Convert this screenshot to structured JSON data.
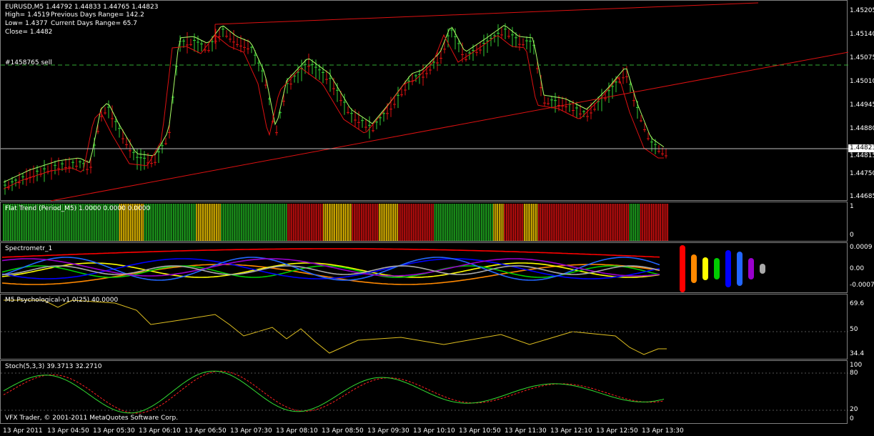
{
  "main": {
    "header_line": "EURUSD,M5  1.44792 1.44833 1.44765 1.44823",
    "high": "High= 1.4519",
    "prev_range": "Previous Days Range= 142.2",
    "low": "Low= 1.4377",
    "cur_range": "Current Days Range= 65.7",
    "close": "Close= 1.4482",
    "order_label": "#1458765 sell",
    "price_box": "1.44823",
    "axis": [
      "1.45205",
      "1.45140",
      "1.45075",
      "1.45010",
      "1.44945",
      "1.44880",
      "1.44815",
      "1.44750",
      "1.44685"
    ]
  },
  "flat_trend": {
    "title": "Flat Trend (Period_M5) 1.0000 0.0000 0.0000",
    "axis": [
      "1",
      "0"
    ],
    "colors": {
      "green": "#22b722",
      "yellow": "#ffd000",
      "red": "#e01010"
    },
    "bars": "GGGGGGGGGGGGGGGGGGGGGGGGGGGGGGGGGGGGGGGGGGGGGGGGGGGGGGGGGGGGGGGGGYYYYYYYYYYYYYYGGGGGGGGGGGGGGGGGGGGGGGGGGGGGYYYYYYYYYYYYYYGGGGGGGGGGGGGGGGGGGGGGGGGGGGGGGGGGGGGRRRRRRRRRRRRRRRRRRRRYYYYYYYYYYYYYYYYRRRRRRRRRRRRRRRYYYYYYYYYYYRRRRRRRRRRRRRRRRRRRRGGGGGGGGGGGGGGGGGGGGGGGGGGGGGGGGGYYYYYYRRRRRRRRRRRYYYYYYYYRRRRRRRRRRRRRRRRRRRRRRRRRRRRRRRRRRRRRRRRRRRRRRRRRRRGGGGGGRRRRRRRRRRRRRRRR"
  },
  "spectrometr": {
    "title": "Spectrometr_1",
    "axis": [
      "0.0009",
      "0.00",
      "-0.0007"
    ],
    "bar_colors": [
      "#ff0000",
      "#ff8800",
      "#ffff00",
      "#00cc00",
      "#0000ff",
      "#2266ff",
      "#9900cc",
      "#aaaaaa"
    ]
  },
  "psychological": {
    "title": "M5 Psychological-v1.0(25) 40.0000",
    "axis": [
      "69.6",
      "50",
      "34.4"
    ],
    "color": "#e0c020"
  },
  "stoch": {
    "title": "Stoch(5,3,3) 39.3713 32.2710",
    "axis": [
      "100",
      "80",
      "20",
      "0"
    ],
    "main_color": "#33dd33",
    "signal_color": "#ff2020",
    "copyright": "VFX Trader, © 2001-2011 MetaQuotes Software Corp."
  },
  "time_axis": [
    "13 Apr 2011",
    "13 Apr 04:50",
    "13 Apr 05:30",
    "13 Apr 06:10",
    "13 Apr 06:50",
    "13 Apr 07:30",
    "13 Apr 08:10",
    "13 Apr 08:50",
    "13 Apr 09:30",
    "13 Apr 10:10",
    "13 Apr 10:50",
    "13 Apr 11:30",
    "13 Apr 12:10",
    "13 Apr 12:50",
    "13 Apr 13:30"
  ],
  "colors": {
    "bull": "#33cc33",
    "bear": "#dd1111",
    "trend": "#dd1111",
    "orderline": "#33aa33"
  }
}
